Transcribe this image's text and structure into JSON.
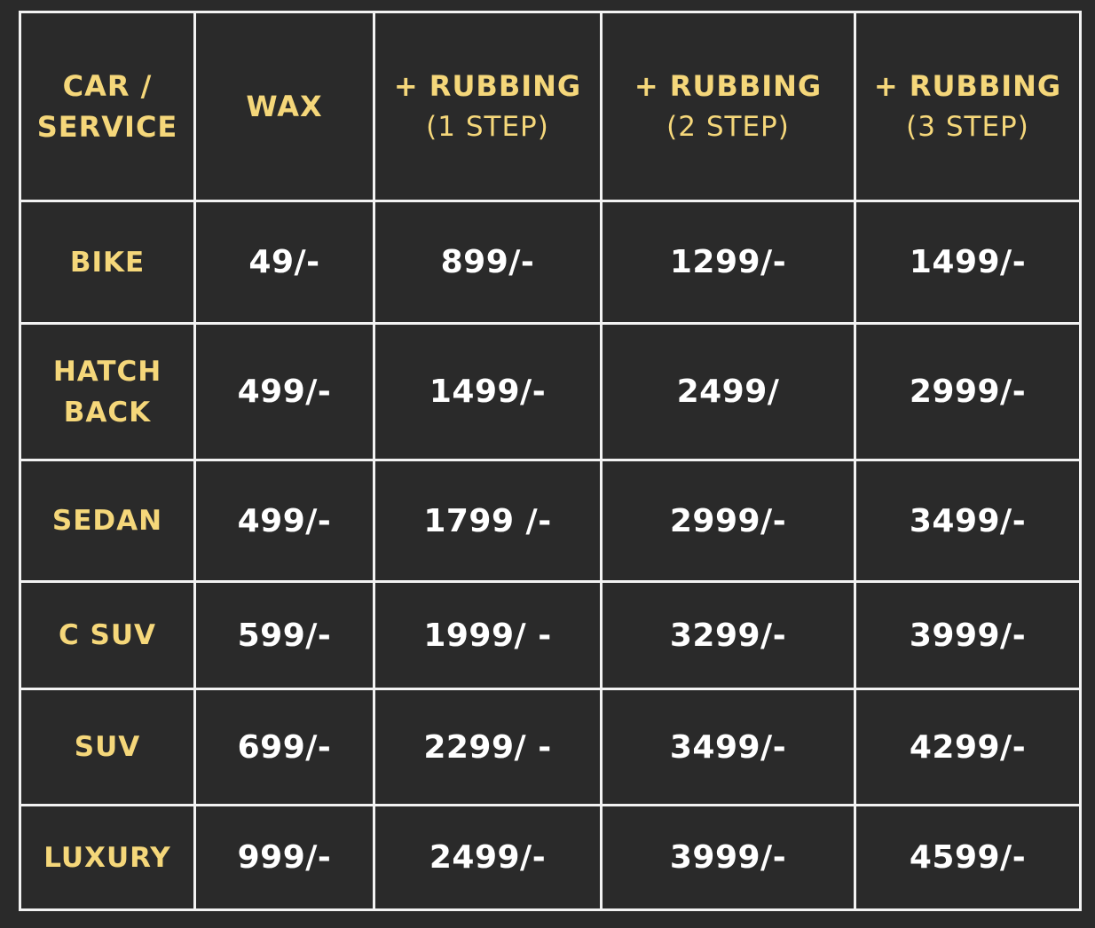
{
  "colors": {
    "background": "#2a2a2a",
    "grid": "#f2f2f2",
    "header_text": "#f5d77a",
    "price_text": "#ffffff"
  },
  "table": {
    "header": {
      "service": [
        "CAR /",
        "SERVICE"
      ],
      "wax": "WAX",
      "rubbing1": {
        "main": "+ RUBBING",
        "sub": "(1 STEP)"
      },
      "rubbing2": {
        "main": "+ RUBBING",
        "sub": "(2 STEP)"
      },
      "rubbing3": {
        "main": "+ RUBBING",
        "sub": "(3 STEP)"
      }
    },
    "rows": [
      {
        "label": [
          "BIKE"
        ],
        "wax": "49/-",
        "r1": "899/-",
        "r2": "1299/-",
        "r3": "1499/-"
      },
      {
        "label": [
          "HATCH",
          "BACK"
        ],
        "wax": "499/-",
        "r1": "1499/-",
        "r2": "2499/",
        "r3": "2999/-"
      },
      {
        "label": [
          "SEDAN"
        ],
        "wax": "499/-",
        "r1": "1799 /-",
        "r2": "2999/-",
        "r3": "3499/-"
      },
      {
        "label": [
          "C SUV"
        ],
        "wax": "599/-",
        "r1": "1999/ -",
        "r2": "3299/-",
        "r3": "3999/-"
      },
      {
        "label": [
          "SUV"
        ],
        "wax": "699/-",
        "r1": "2299/ -",
        "r2": "3499/-",
        "r3": "4299/-"
      },
      {
        "label": [
          "LUXURY"
        ],
        "wax": "999/-",
        "r1": "2499/-",
        "r2": "3999/-",
        "r3": "4599/-"
      }
    ]
  }
}
